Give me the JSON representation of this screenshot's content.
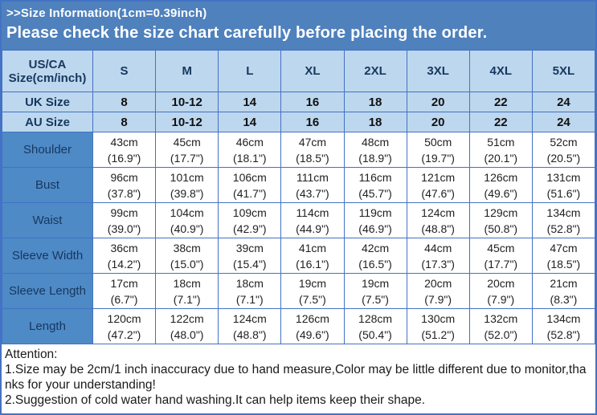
{
  "banner": {
    "line1": ">>Size Information(1cm=0.39inch)",
    "line2": "Please check the size chart carefully before placing the order."
  },
  "colors": {
    "banner_bg": "#4f81bd",
    "header_bg": "#bdd7ee",
    "label_bg": "#4e8ac6",
    "border": "#4472c4",
    "header_text": "#17375e",
    "cell_text": "#1f1f1f",
    "banner_text": "#ffffff"
  },
  "table": {
    "corner_header": "US/CA Size(cm/inch)",
    "size_headers": [
      "S",
      "M",
      "L",
      "XL",
      "2XL",
      "3XL",
      "4XL",
      "5XL"
    ],
    "uk_row": {
      "label": "UK Size",
      "values": [
        "8",
        "10-12",
        "14",
        "16",
        "18",
        "20",
        "22",
        "24"
      ]
    },
    "au_row": {
      "label": "AU Size",
      "values": [
        "8",
        "10-12",
        "14",
        "16",
        "18",
        "20",
        "22",
        "24"
      ]
    },
    "measurement_rows": [
      {
        "label": "Shoulder",
        "cm": [
          "43cm",
          "45cm",
          "46cm",
          "47cm",
          "48cm",
          "50cm",
          "51cm",
          "52cm"
        ],
        "inch": [
          "(16.9\")",
          "(17.7\")",
          "(18.1\")",
          "(18.5\")",
          "(18.9\")",
          "(19.7\")",
          "(20.1\")",
          "(20.5\")"
        ]
      },
      {
        "label": "Bust",
        "cm": [
          "96cm",
          "101cm",
          "106cm",
          "111cm",
          "116cm",
          "121cm",
          "126cm",
          "131cm"
        ],
        "inch": [
          "(37.8\")",
          "(39.8\")",
          "(41.7\")",
          "(43.7\")",
          "(45.7\")",
          "(47.6\")",
          "(49.6\")",
          "(51.6\")"
        ]
      },
      {
        "label": "Waist",
        "cm": [
          "99cm",
          "104cm",
          "109cm",
          "114cm",
          "119cm",
          "124cm",
          "129cm",
          "134cm"
        ],
        "inch": [
          "(39.0\")",
          "(40.9\")",
          "(42.9\")",
          "(44.9\")",
          "(46.9\")",
          "(48.8\")",
          "(50.8\")",
          "(52.8\")"
        ]
      },
      {
        "label": "Sleeve Width",
        "cm": [
          "36cm",
          "38cm",
          "39cm",
          "41cm",
          "42cm",
          "44cm",
          "45cm",
          "47cm"
        ],
        "inch": [
          "(14.2\")",
          "(15.0\")",
          "(15.4\")",
          "(16.1\")",
          "(16.5\")",
          "(17.3\")",
          "(17.7\")",
          "(18.5\")"
        ]
      },
      {
        "label": "Sleeve Length",
        "cm": [
          "17cm",
          "18cm",
          "18cm",
          "19cm",
          "19cm",
          "20cm",
          "20cm",
          "21cm"
        ],
        "inch": [
          "(6.7\")",
          "(7.1\")",
          "(7.1\")",
          "(7.5\")",
          "(7.5\")",
          "(7.9\")",
          "(7.9\")",
          "(8.3\")"
        ]
      },
      {
        "label": "Length",
        "cm": [
          "120cm",
          "122cm",
          "124cm",
          "126cm",
          "128cm",
          "130cm",
          "132cm",
          "134cm"
        ],
        "inch": [
          "(47.2\")",
          "(48.0\")",
          "(48.8\")",
          "(49.6\")",
          "(50.4\")",
          "(51.2\")",
          "(52.0\")",
          "(52.8\")"
        ]
      }
    ]
  },
  "notes": {
    "title": "Attention:",
    "items": [
      "1.Size may be 2cm/1 inch inaccuracy due to hand measure,Color may be little different due to monitor,thanks for your understanding!",
      "2.Suggestion of cold water hand washing.It can help items keep their shape."
    ]
  }
}
